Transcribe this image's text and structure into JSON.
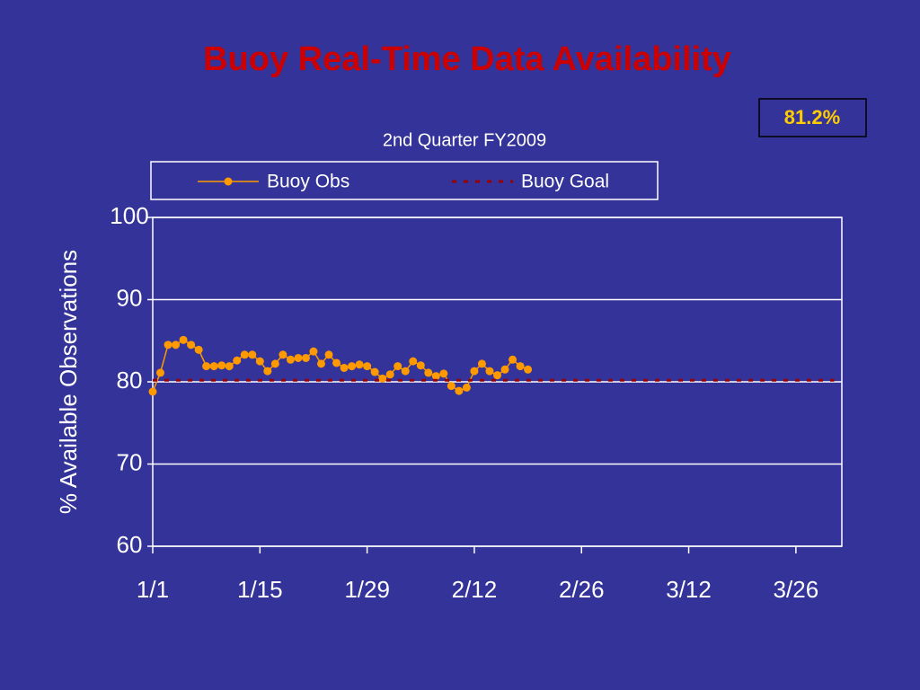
{
  "chart_data": {
    "type": "line",
    "title": "Buoy Real-Time Data Availability",
    "subtitle": "2nd Quarter FY2009",
    "annotation": "81.2%",
    "y_label": "% Available Observations",
    "xlim": [
      0,
      90
    ],
    "xticks": [
      {
        "value": 0,
        "label": "1/1"
      },
      {
        "value": 14,
        "label": "1/15"
      },
      {
        "value": 28,
        "label": "1/29"
      },
      {
        "value": 42,
        "label": "2/12"
      },
      {
        "value": 56,
        "label": "2/26"
      },
      {
        "value": 70,
        "label": "3/12"
      },
      {
        "value": 84,
        "label": "3/26"
      }
    ],
    "ylim": [
      60,
      100
    ],
    "yticks": [
      60,
      70,
      80,
      90,
      100
    ],
    "grid": true,
    "series": [
      {
        "name": "Buoy Obs",
        "color": "#ff9900",
        "marker": true,
        "dashed": false,
        "x": [
          0,
          1,
          2,
          3,
          4,
          5,
          6,
          7,
          8,
          9,
          10,
          11,
          12,
          13,
          14,
          15,
          16,
          17,
          18,
          19,
          20,
          21,
          22,
          23,
          24,
          25,
          26,
          27,
          28,
          29,
          30,
          31,
          32,
          33,
          34,
          35,
          36,
          37,
          38,
          39,
          40,
          41,
          42,
          43,
          44,
          45,
          46,
          47,
          48,
          49
        ],
        "values": [
          78.8,
          81.1,
          84.5,
          84.5,
          85.1,
          84.5,
          83.9,
          81.9,
          81.9,
          82.0,
          81.9,
          82.6,
          83.3,
          83.3,
          82.5,
          81.3,
          82.2,
          83.3,
          82.7,
          82.9,
          82.9,
          83.7,
          82.2,
          83.3,
          82.3,
          81.7,
          81.9,
          82.1,
          81.9,
          81.2,
          80.4,
          80.9,
          81.9,
          81.3,
          82.5,
          82.0,
          81.1,
          80.7,
          81.0,
          79.5,
          78.9,
          79.3,
          81.3,
          82.2,
          81.3,
          80.8,
          81.5,
          82.7,
          81.9,
          81.5
        ]
      },
      {
        "name": "Buoy Goal",
        "color": "#990000",
        "marker": false,
        "dashed": true,
        "x": [
          0,
          89
        ],
        "values": [
          80.2,
          80.2
        ]
      }
    ]
  }
}
